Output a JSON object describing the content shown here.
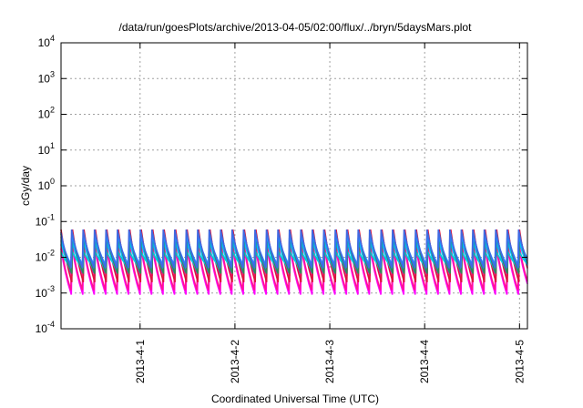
{
  "chart_data": {
    "type": "line",
    "title": "/data/run/goesPlots/archive/2013-04-05/02:00/flux/../bryn/5daysMars.plot",
    "xlabel": "Coordinated Universal Time (UTC)",
    "ylabel": "cGy/day",
    "y_scale": "log",
    "ylim": [
      0.0001,
      10000
    ],
    "xlim": [
      "2013-03-31 04:00",
      "2013-04-05 02:00"
    ],
    "grid": true,
    "legend": "none",
    "y_ticks": [
      {
        "base": "10",
        "exp": "-4",
        "value": 0.0001
      },
      {
        "base": "10",
        "exp": "-3",
        "value": 0.001
      },
      {
        "base": "10",
        "exp": "-2",
        "value": 0.01
      },
      {
        "base": "10",
        "exp": "-1",
        "value": 0.1
      },
      {
        "base": "10",
        "exp": "0",
        "value": 1
      },
      {
        "base": "10",
        "exp": "1",
        "value": 10
      },
      {
        "base": "10",
        "exp": "2",
        "value": 100
      },
      {
        "base": "10",
        "exp": "3",
        "value": 1000
      },
      {
        "base": "10",
        "exp": "4",
        "value": 10000
      }
    ],
    "x_ticks": [
      {
        "label": "2013-4-1",
        "date": "2013-04-01 00:00"
      },
      {
        "label": "2013-4-2",
        "date": "2013-04-02 00:00"
      },
      {
        "label": "2013-4-3",
        "date": "2013-04-03 00:00"
      },
      {
        "label": "2013-4-4",
        "date": "2013-04-04 00:00"
      },
      {
        "label": "2013-4-5",
        "date": "2013-04-05 00:00"
      }
    ],
    "series": [
      {
        "color": "#9400d3",
        "peak": 0.05,
        "trough": 0.003
      },
      {
        "color": "#ff00ff",
        "peak": 0.02,
        "trough": 0.0009
      },
      {
        "color": "#ff1493",
        "peak": 0.03,
        "trough": 0.0012
      },
      {
        "color": "#dc143c",
        "peak": 0.06,
        "trough": 0.002
      },
      {
        "color": "#00ced1",
        "peak": 0.015,
        "trough": 0.005
      },
      {
        "color": "#00bfff",
        "peak": 0.035,
        "trough": 0.004
      },
      {
        "color": "#2e8b57",
        "peak": 0.045,
        "trough": 0.0035
      },
      {
        "color": "#1e90ff",
        "peak": 0.04,
        "trough": 0.006
      },
      {
        "color": "#4169e1",
        "peak": 0.06,
        "trough": 0.005
      }
    ],
    "sawtooth_cycle_hours": 2.9
  }
}
